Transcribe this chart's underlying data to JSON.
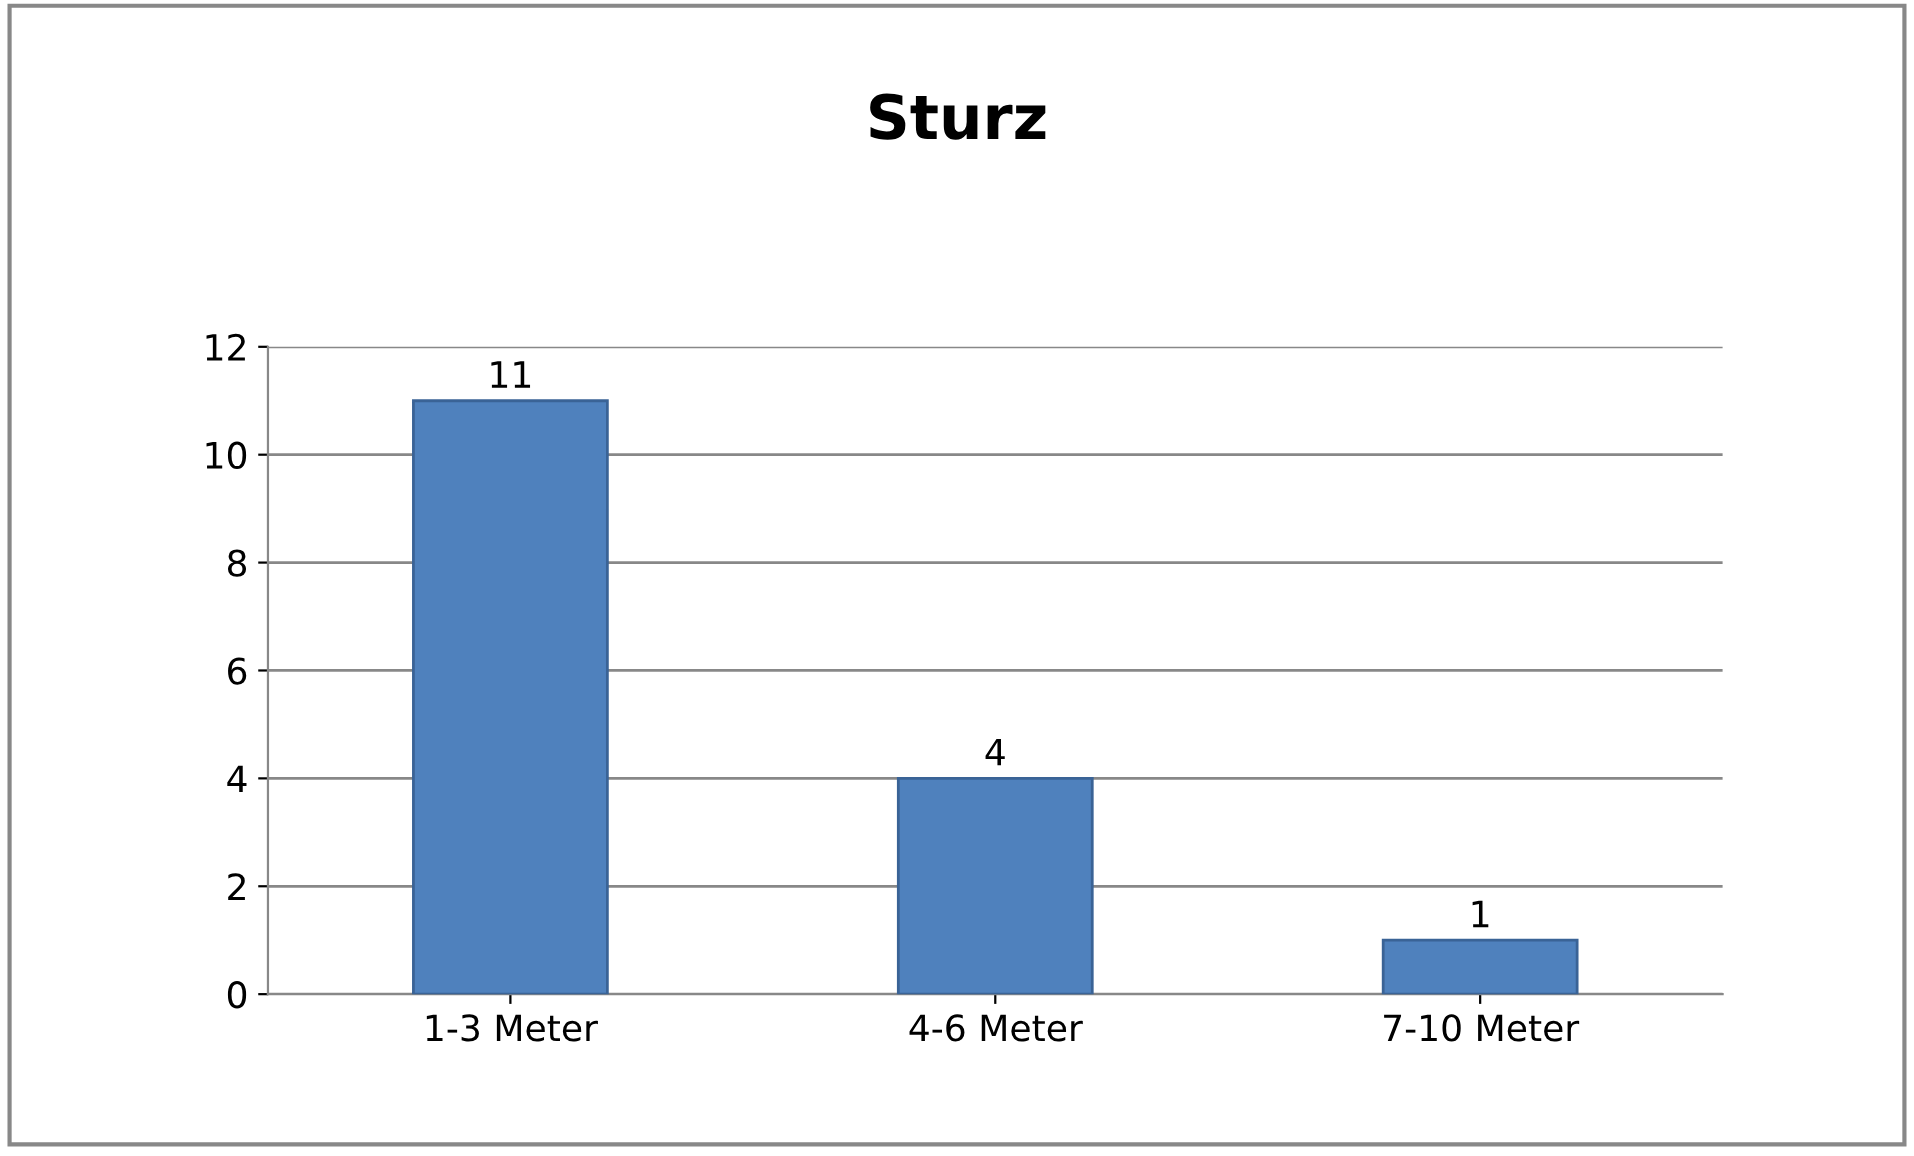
{
  "chart_data": {
    "type": "bar",
    "title": "Sturz",
    "categories": [
      "1-3 Meter",
      "4-6 Meter",
      "7-10 Meter"
    ],
    "values": [
      11,
      4,
      1
    ],
    "color": "#4f81bd",
    "ylim": [
      0,
      12
    ],
    "yticks": [
      0,
      2,
      4,
      6,
      8,
      10,
      12
    ],
    "grid": "y",
    "data_labels": true,
    "legend": false
  }
}
